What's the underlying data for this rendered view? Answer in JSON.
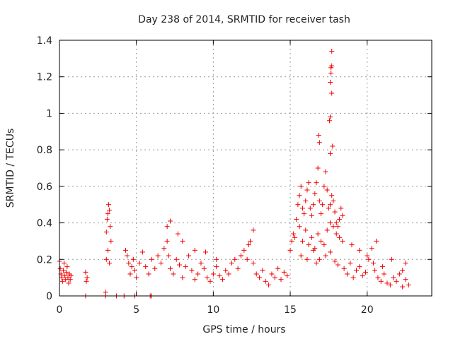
{
  "chart_data": {
    "type": "scatter",
    "title": "Day 238 of 2014, SRMTID for receiver tash",
    "xlabel": "GPS time / hours",
    "ylabel": "SRMTID / TECUs",
    "xlim": [
      0,
      24.2
    ],
    "ylim": [
      0,
      1.4
    ],
    "xticks": [
      0,
      5,
      10,
      15,
      20
    ],
    "xtick_labels": [
      "0",
      "5",
      "10",
      "15",
      "20"
    ],
    "yticks": [
      0,
      0.2,
      0.4,
      0.6,
      0.8,
      1.0,
      1.2,
      1.4
    ],
    "ytick_labels": [
      "0",
      "0.2",
      "0.4",
      "0.6",
      "0.8",
      "1",
      "1.2",
      "1.4"
    ],
    "grid": true,
    "marker": "+",
    "color": "#ee0000",
    "series": [
      {
        "name": "SRMTID",
        "x": [
          0.0,
          0.05,
          0.1,
          0.15,
          0.2,
          0.25,
          0.3,
          0.35,
          0.4,
          0.45,
          0.5,
          0.55,
          0.6,
          0.65,
          0.7,
          0.75,
          1.7,
          1.75,
          1.8,
          3.0,
          3.05,
          3.1,
          3.15,
          3.2,
          3.25,
          3.3,
          3.35,
          3.05,
          3.15,
          3.25,
          4.3,
          4.4,
          4.5,
          4.6,
          4.7,
          4.8,
          4.9,
          5.0,
          5.2,
          5.4,
          5.6,
          5.8,
          6.0,
          6.2,
          6.4,
          6.6,
          6.8,
          7.0,
          7.1,
          7.2,
          7.4,
          7.6,
          7.8,
          8.0,
          8.2,
          8.4,
          8.6,
          8.8,
          9.0,
          9.2,
          9.4,
          9.6,
          9.8,
          10.0,
          10.2,
          10.4,
          10.6,
          10.8,
          11.0,
          11.2,
          11.4,
          11.6,
          11.8,
          12.0,
          12.2,
          12.4,
          12.6,
          12.8,
          13.0,
          13.2,
          13.4,
          13.6,
          13.8,
          14.0,
          14.2,
          14.4,
          14.6,
          14.8,
          7.0,
          7.2,
          7.7,
          8.0,
          8.8,
          9.5,
          10.2,
          11.8,
          12.3,
          12.6,
          15.0,
          15.1,
          15.2,
          15.3,
          15.4,
          15.5,
          15.6,
          15.7,
          15.8,
          15.9,
          16.0,
          16.1,
          16.2,
          16.3,
          16.4,
          16.5,
          16.6,
          16.7,
          16.8,
          16.9,
          17.0,
          17.1,
          17.2,
          17.3,
          17.4,
          17.5,
          17.6,
          17.7,
          17.8,
          17.9,
          18.0,
          18.1,
          18.2,
          18.3,
          18.4,
          15.6,
          15.8,
          16.0,
          16.2,
          16.4,
          16.6,
          16.8,
          17.0,
          17.2,
          17.4,
          17.6,
          17.8,
          18.0,
          18.2,
          18.4,
          15.7,
          16.1,
          16.5,
          16.7,
          16.9,
          17.3,
          17.6,
          17.9,
          18.1,
          16.85,
          16.9,
          17.55,
          17.6,
          17.6,
          17.65,
          17.65,
          17.7,
          17.7,
          17.7,
          17.75,
          17.6,
          18.5,
          18.7,
          18.9,
          19.1,
          19.3,
          19.5,
          19.7,
          19.9,
          20.1,
          20.3,
          20.5,
          20.7,
          20.9,
          21.1,
          21.3,
          21.5,
          21.7,
          21.9,
          22.1,
          22.3,
          22.5,
          22.7,
          19.0,
          19.5,
          20.0,
          20.4,
          20.6,
          21.0,
          21.6,
          22.3,
          22.5,
          1.7,
          3.0,
          3.7,
          4.2,
          4.9,
          5.9,
          6.0
        ],
        "y": [
          0.19,
          0.15,
          0.12,
          0.1,
          0.08,
          0.14,
          0.18,
          0.11,
          0.09,
          0.13,
          0.16,
          0.1,
          0.07,
          0.12,
          0.09,
          0.11,
          0.13,
          0.08,
          0.1,
          0.02,
          0.35,
          0.42,
          0.45,
          0.5,
          0.47,
          0.38,
          0.3,
          0.2,
          0.25,
          0.18,
          0.25,
          0.22,
          0.18,
          0.12,
          0.16,
          0.2,
          0.14,
          0.1,
          0.18,
          0.24,
          0.16,
          0.12,
          0.2,
          0.15,
          0.22,
          0.18,
          0.26,
          0.3,
          0.22,
          0.15,
          0.12,
          0.2,
          0.17,
          0.1,
          0.16,
          0.22,
          0.14,
          0.09,
          0.12,
          0.18,
          0.15,
          0.1,
          0.08,
          0.12,
          0.16,
          0.11,
          0.09,
          0.14,
          0.12,
          0.18,
          0.2,
          0.15,
          0.22,
          0.25,
          0.2,
          0.3,
          0.18,
          0.12,
          0.1,
          0.14,
          0.08,
          0.06,
          0.12,
          0.1,
          0.15,
          0.09,
          0.13,
          0.11,
          0.38,
          0.41,
          0.34,
          0.3,
          0.25,
          0.24,
          0.2,
          0.22,
          0.28,
          0.36,
          0.25,
          0.3,
          0.34,
          0.32,
          0.42,
          0.5,
          0.55,
          0.6,
          0.48,
          0.45,
          0.52,
          0.58,
          0.62,
          0.48,
          0.44,
          0.5,
          0.56,
          0.62,
          0.7,
          0.52,
          0.45,
          0.5,
          0.6,
          0.68,
          0.58,
          0.48,
          0.5,
          0.55,
          0.52,
          0.46,
          0.4,
          0.38,
          0.42,
          0.48,
          0.44,
          0.38,
          0.3,
          0.36,
          0.28,
          0.32,
          0.26,
          0.34,
          0.3,
          0.28,
          0.36,
          0.4,
          0.38,
          0.34,
          0.32,
          0.3,
          0.22,
          0.2,
          0.25,
          0.18,
          0.2,
          0.22,
          0.24,
          0.19,
          0.17,
          0.88,
          0.84,
          0.96,
          0.98,
          1.17,
          1.22,
          1.25,
          1.26,
          1.11,
          1.34,
          0.82,
          0.78,
          0.15,
          0.12,
          0.18,
          0.1,
          0.14,
          0.16,
          0.11,
          0.13,
          0.2,
          0.26,
          0.14,
          0.1,
          0.08,
          0.12,
          0.07,
          0.06,
          0.1,
          0.08,
          0.12,
          0.05,
          0.09,
          0.06,
          0.28,
          0.25,
          0.22,
          0.18,
          0.3,
          0.16,
          0.2,
          0.14,
          0.18,
          0.0,
          0.0,
          0.0,
          0.0,
          0.0,
          0.0,
          0.0
        ]
      }
    ]
  }
}
